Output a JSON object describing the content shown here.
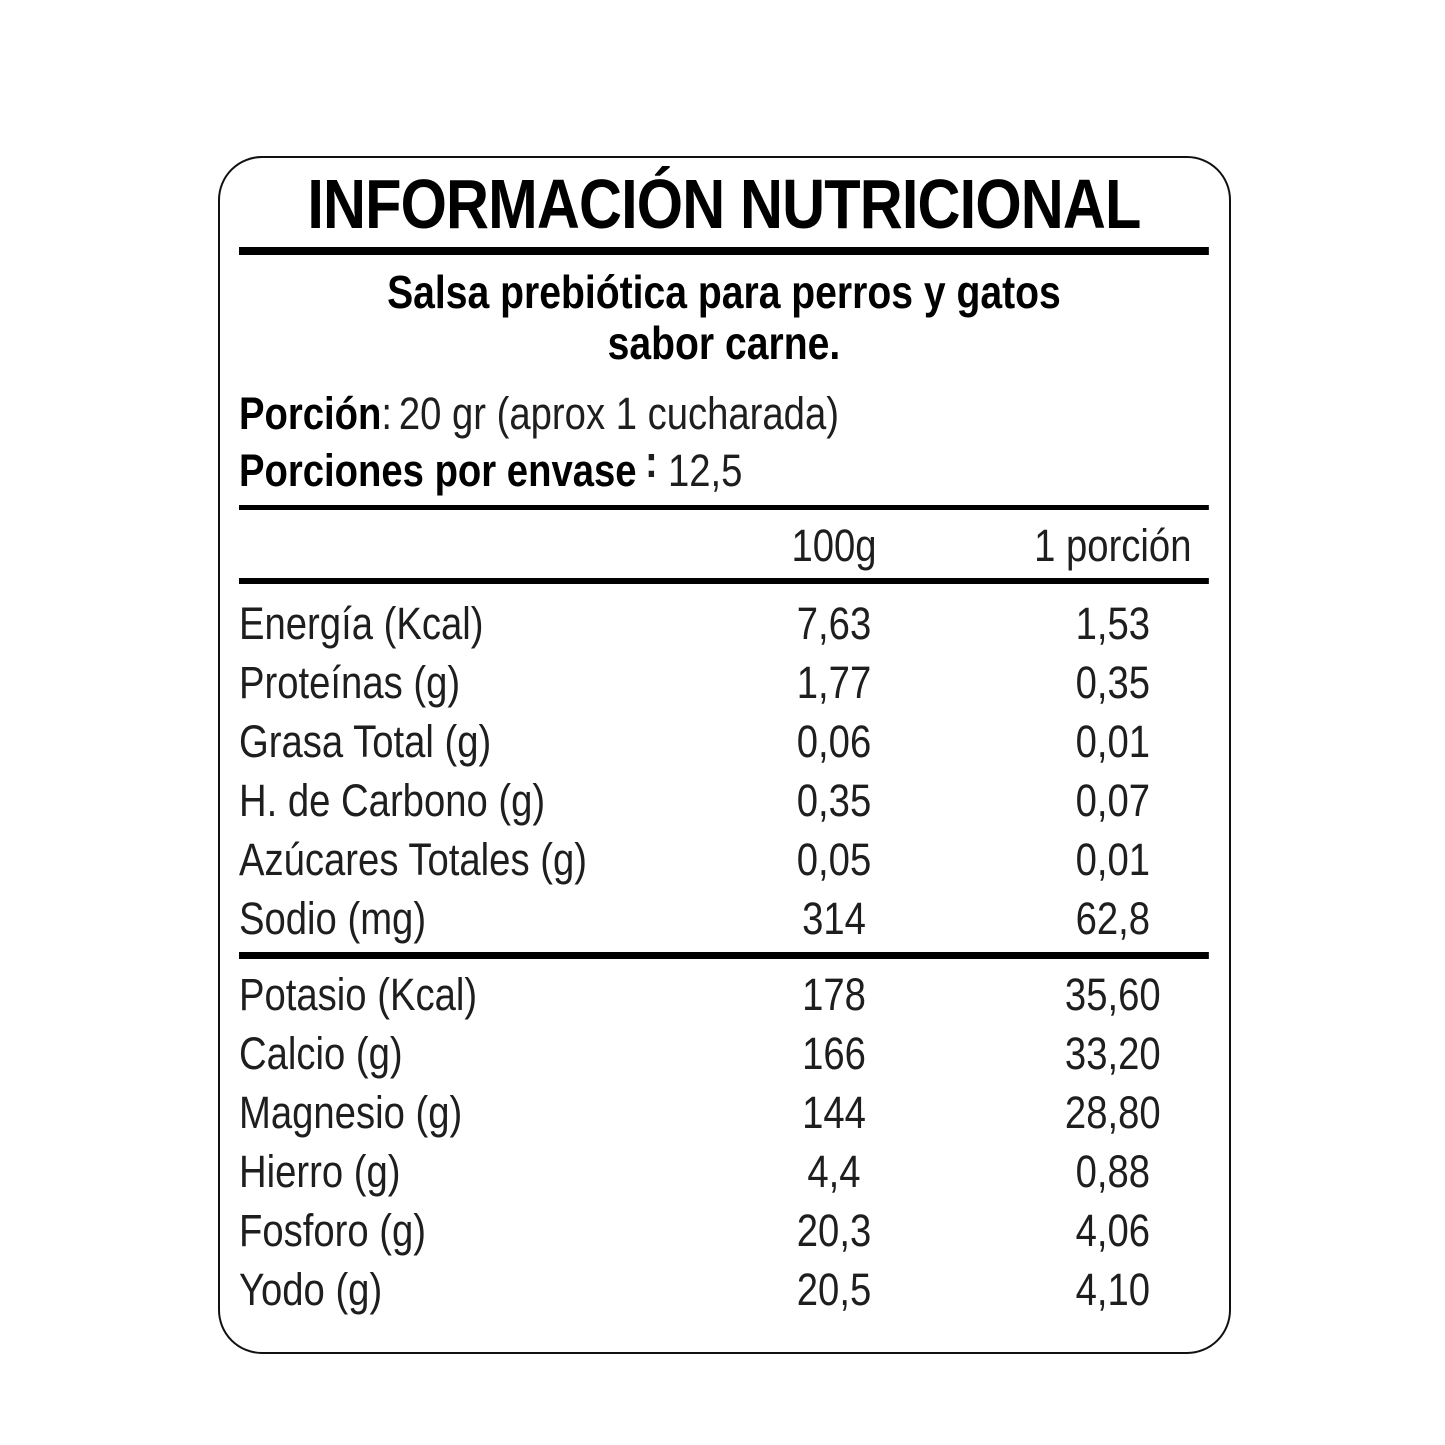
{
  "colors": {
    "text": "#000000",
    "light_text": "#1e1e1e",
    "background": "#ffffff",
    "border": "#111111"
  },
  "label": {
    "title": "INFORMACIÓN NUTRICIONAL",
    "subtitle": {
      "line1": "Salsa prebiótica para perros y gatos",
      "line2": "sabor carne."
    },
    "serving": {
      "portion_label": "Porción",
      "portion_colon": ":",
      "portion_value": "20 gr (aprox 1 cucharada)",
      "servings_label": "Porciones por envase",
      "servings_colon": ":",
      "servings_value": "12,5"
    },
    "table": {
      "headers": {
        "per100": "100g",
        "portion": "1 porción"
      },
      "group1": [
        {
          "name": "Energía (Kcal)",
          "per100": "7,63",
          "portion": "1,53"
        },
        {
          "name": "Proteínas (g)",
          "per100": "1,77",
          "portion": "0,35"
        },
        {
          "name": "Grasa Total (g)",
          "per100": "0,06",
          "portion": "0,01"
        },
        {
          "name": "H. de Carbono (g)",
          "per100": "0,35",
          "portion": "0,07"
        },
        {
          "name": "Azúcares Totales (g)",
          "per100": "0,05",
          "portion": "0,01"
        },
        {
          "name": "Sodio (mg)",
          "per100": "314",
          "portion": "62,8"
        }
      ],
      "group2": [
        {
          "name": "Potasio (Kcal)",
          "per100": "178",
          "portion": "35,60"
        },
        {
          "name": "Calcio (g)",
          "per100": "166",
          "portion": "33,20"
        },
        {
          "name": "Magnesio (g)",
          "per100": "144",
          "portion": "28,80"
        },
        {
          "name": "Hierro (g)",
          "per100": "4,4",
          "portion": "0,88"
        },
        {
          "name": "Fosforo (g)",
          "per100": "20,3",
          "portion": "4,06"
        },
        {
          "name": "Yodo (g)",
          "per100": "20,5",
          "portion": "4,10"
        }
      ]
    }
  }
}
